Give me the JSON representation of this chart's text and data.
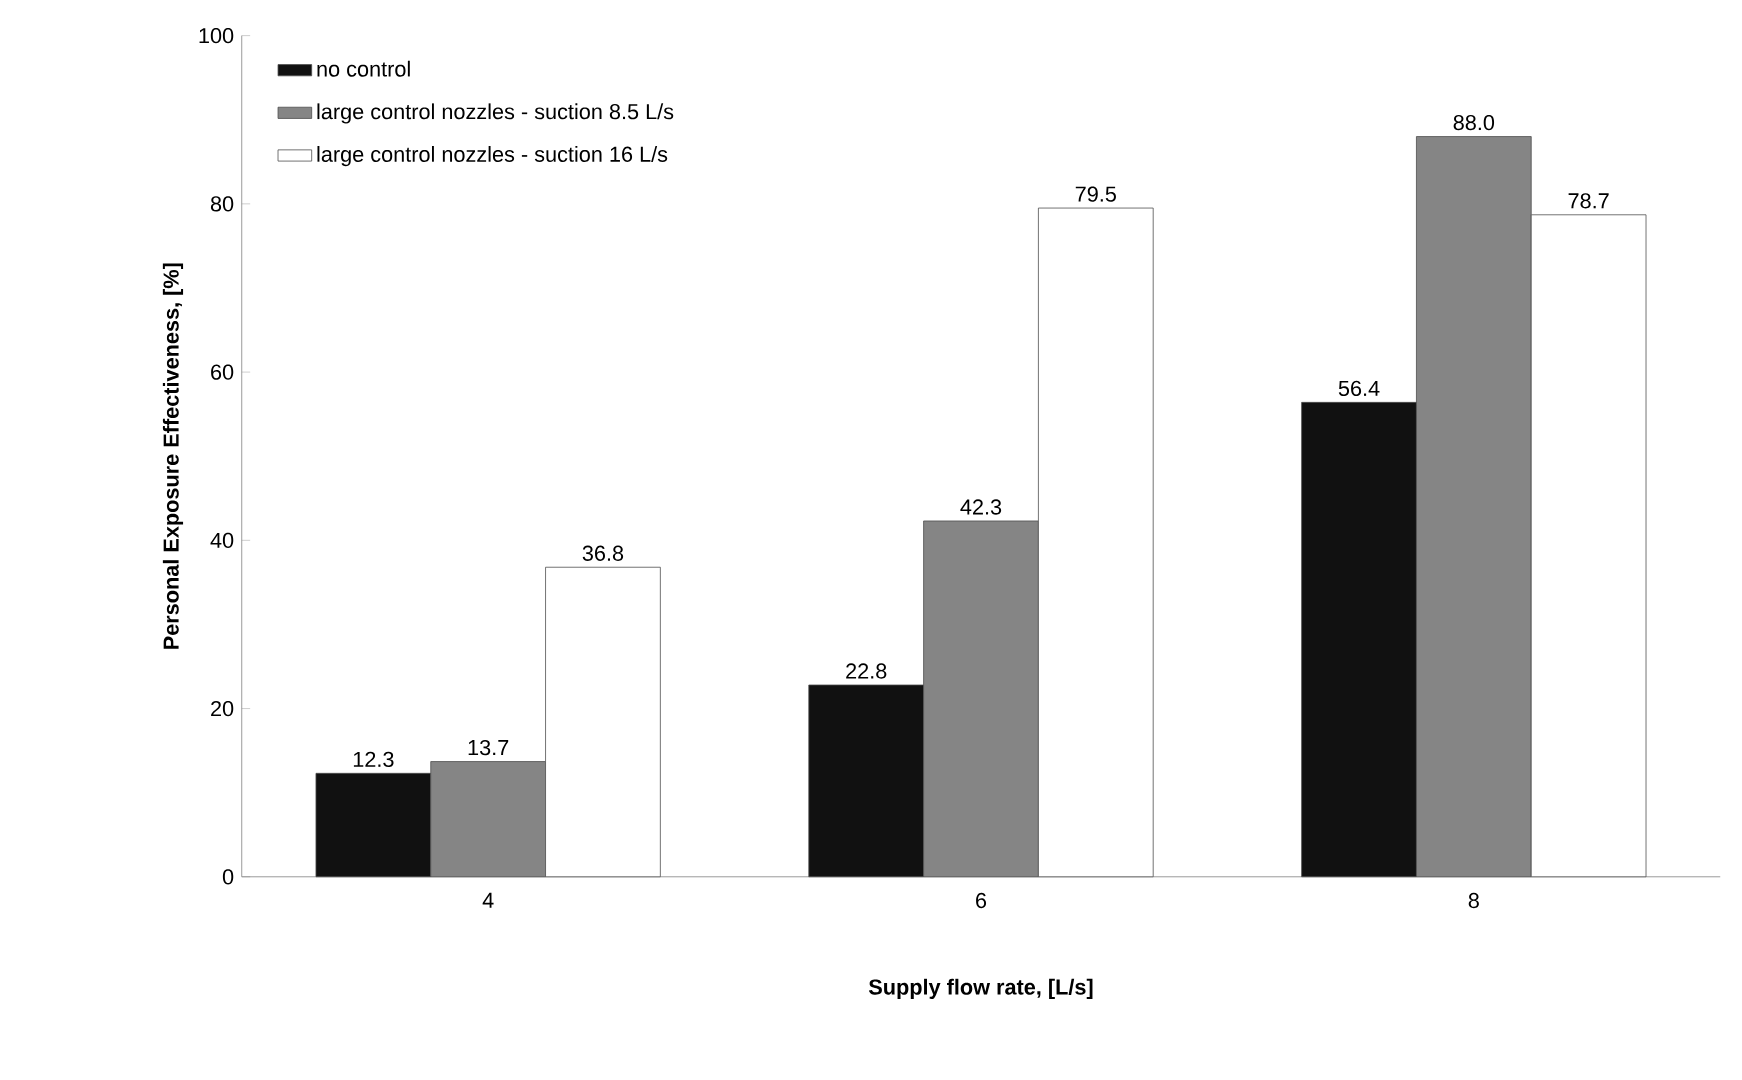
{
  "chart_data": {
    "type": "bar",
    "xlabel": "Supply flow rate, [L/s]",
    "ylabel": "Personal Exposure Effectiveness, [%]",
    "categories": [
      "4",
      "6",
      "8"
    ],
    "series": [
      {
        "name": "no control",
        "color": "#111111",
        "values": [
          12.3,
          22.8,
          56.4
        ],
        "value_labels": [
          "12.3",
          "22.8",
          "56.4"
        ]
      },
      {
        "name": "large control nozzles - suction 8.5 L/s",
        "color": "#858585",
        "values": [
          13.7,
          42.3,
          88.0
        ],
        "value_labels": [
          "13.7",
          "42.3",
          "88.0"
        ]
      },
      {
        "name": "large control nozzles - suction 16 L/s",
        "color": "#ffffff",
        "values": [
          36.8,
          79.5,
          78.7
        ],
        "value_labels": [
          "36.8",
          "79.5",
          "78.7"
        ]
      }
    ],
    "ylim": [
      0,
      100
    ],
    "yticks": [
      0,
      20,
      40,
      60,
      80,
      100
    ],
    "grid": false,
    "legend": "top left"
  }
}
